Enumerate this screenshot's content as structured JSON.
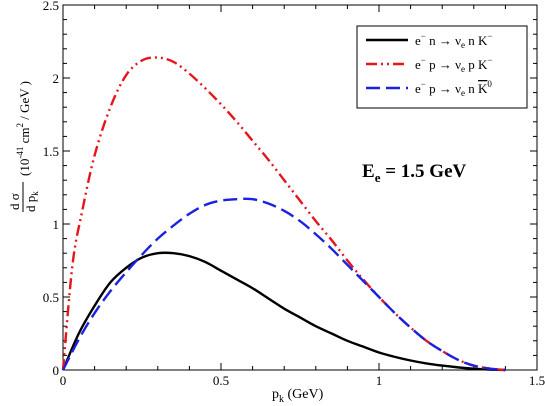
{
  "chart_data": {
    "type": "line",
    "xlabel": {
      "main": "p",
      "sub": "k",
      "unit": " (GeV)"
    },
    "ylabel": {
      "num": "d σ",
      "den_main": "d p",
      "den_sub": "k",
      "unit_a": "(10",
      "unit_exp1": "-41",
      "unit_b": " cm",
      "unit_exp2": "2",
      "unit_c": " / GeV  )"
    },
    "xlim": [
      0,
      1.5
    ],
    "ylim": [
      0,
      2.5
    ],
    "xticks": [
      0,
      0.5,
      1,
      1.5
    ],
    "xtick_labels": [
      "0",
      "0.5",
      "1",
      "1.5"
    ],
    "yticks": [
      0,
      0.5,
      1,
      1.5,
      2,
      2.5
    ],
    "ytick_labels": [
      "0",
      "0.5",
      "1",
      "1.5",
      "2",
      "2.5"
    ],
    "annotation": {
      "main": "E",
      "sub": "e",
      "rest": " = 1.5 GeV",
      "color": "#1a22c8"
    },
    "legend_position": "top-right",
    "series": [
      {
        "name": "e⁻ n → νₑ n K⁻",
        "label": {
          "pre": "e",
          "sup1": "−",
          "mid": "  n  → ν",
          "sub": "e",
          "post": " n K",
          "sup2": "−"
        },
        "color": "#000000",
        "dash": "solid",
        "x": [
          0,
          0.05,
          0.1,
          0.15,
          0.2,
          0.25,
          0.3,
          0.35,
          0.4,
          0.45,
          0.5,
          0.55,
          0.6,
          0.65,
          0.7,
          0.75,
          0.8,
          0.85,
          0.9,
          0.95,
          1.0,
          1.05,
          1.1,
          1.15,
          1.2,
          1.25,
          1.3,
          1.35,
          1.4
        ],
        "y": [
          0,
          0.25,
          0.44,
          0.6,
          0.7,
          0.77,
          0.8,
          0.8,
          0.78,
          0.74,
          0.68,
          0.62,
          0.56,
          0.49,
          0.42,
          0.36,
          0.3,
          0.25,
          0.2,
          0.16,
          0.12,
          0.09,
          0.065,
          0.045,
          0.03,
          0.018,
          0.009,
          0.003,
          0
        ]
      },
      {
        "name": "e⁻ p → νₑ p K⁻",
        "label": {
          "pre": "e",
          "sup1": "−",
          "mid": "  p  → ν",
          "sub": "e",
          "post": " p K",
          "sup2": "−"
        },
        "color": "#e8141c",
        "dash": "dash-dot-dot",
        "x": [
          0,
          0.03,
          0.06,
          0.1,
          0.15,
          0.2,
          0.25,
          0.3,
          0.35,
          0.4,
          0.45,
          0.5,
          0.55,
          0.6,
          0.65,
          0.7,
          0.75,
          0.8,
          0.85,
          0.9,
          0.95,
          1.0,
          1.05,
          1.1,
          1.15,
          1.2,
          1.25,
          1.3,
          1.35,
          1.4
        ],
        "y": [
          0,
          0.72,
          1.08,
          1.47,
          1.8,
          2.02,
          2.12,
          2.14,
          2.11,
          2.03,
          1.93,
          1.82,
          1.7,
          1.57,
          1.44,
          1.3,
          1.16,
          1.02,
          0.89,
          0.75,
          0.62,
          0.5,
          0.39,
          0.29,
          0.2,
          0.13,
          0.07,
          0.03,
          0.01,
          0
        ]
      },
      {
        "name": "e⁻ p → νₑ n K̄⁰",
        "label": {
          "pre": "e",
          "sup1": "−",
          "mid": "  p  → ν",
          "sub": "e",
          "post": " n ",
          "bar": "K",
          "sup2": "0"
        },
        "color": "#1a22e0",
        "dash": "dashed",
        "x": [
          0,
          0.05,
          0.1,
          0.15,
          0.2,
          0.25,
          0.3,
          0.35,
          0.4,
          0.45,
          0.5,
          0.55,
          0.6,
          0.65,
          0.7,
          0.75,
          0.8,
          0.85,
          0.9,
          0.95,
          1.0,
          1.05,
          1.1,
          1.15,
          1.2,
          1.25,
          1.3,
          1.35,
          1.4
        ],
        "y": [
          0,
          0.21,
          0.39,
          0.54,
          0.67,
          0.79,
          0.9,
          0.99,
          1.07,
          1.13,
          1.16,
          1.17,
          1.17,
          1.14,
          1.09,
          1.02,
          0.93,
          0.83,
          0.72,
          0.61,
          0.5,
          0.39,
          0.29,
          0.2,
          0.13,
          0.07,
          0.03,
          0.01,
          0
        ]
      }
    ]
  }
}
